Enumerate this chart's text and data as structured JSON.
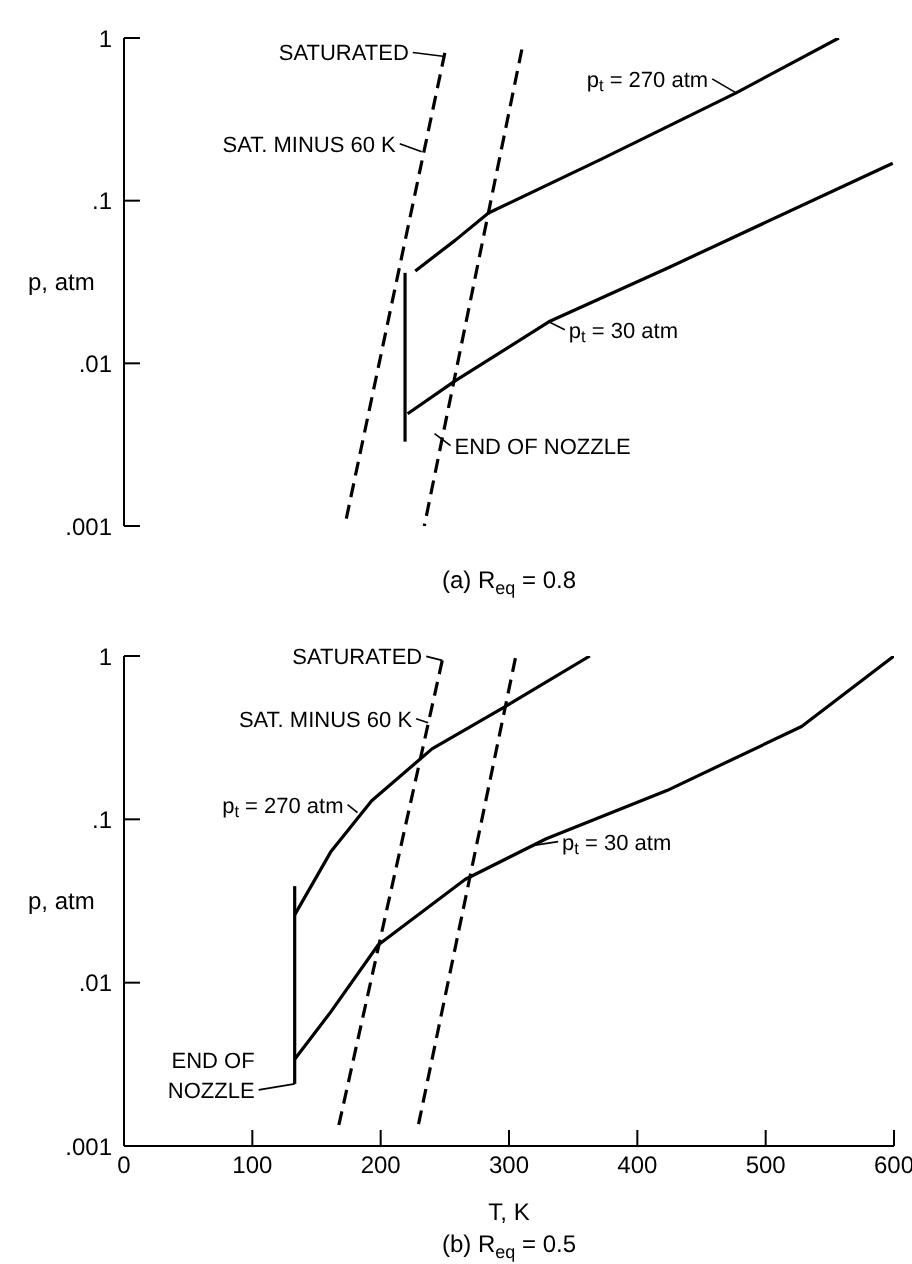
{
  "chart_data": [
    {
      "type": "line",
      "title": "(a) R$_{eq}$ = 0.8",
      "ylabel": "p, atm",
      "log": "y",
      "xlim": [
        0,
        600
      ],
      "xticks": [
        0,
        100,
        200,
        300,
        400,
        500,
        600
      ],
      "ylim": [
        0.001,
        1
      ],
      "yticks": [
        {
          "value": 0.001,
          "label": ".001"
        },
        {
          "value": 0.01,
          "label": ".01"
        },
        {
          "value": 0.1,
          "label": ".1"
        },
        1
      ],
      "tick_labels": "y",
      "marker": "none",
      "series": [
        {
          "color": "#000000",
          "line_style": "solid",
          "x": [
            227,
            258,
            284,
            372,
            477,
            557
          ],
          "values": [
            0.037,
            0.057,
            0.084,
            0.18,
            0.46,
            1
          ]
        },
        {
          "color": "#000000",
          "line_style": "solid",
          "x": [
            221,
            258,
            331,
            425,
            599
          ],
          "values": [
            0.0049,
            0.0078,
            0.018,
            0.039,
            0.17
          ]
        },
        {
          "color": "#000000",
          "line_style": "dashed",
          "x": [
            310,
            234
          ],
          "values": [
            0.85,
            0.001
          ]
        },
        {
          "color": "#000000",
          "line_style": "dashed",
          "x": [
            250,
            172
          ],
          "values": [
            0.81,
            0.001
          ]
        },
        {
          "color": "#000000",
          "line_style": "solid",
          "x": [
            219,
            219
          ],
          "values": [
            0.036,
            0.0033
          ]
        }
      ],
      "annotations": [
        {
          "text": "SATURATED",
          "x": 250,
          "y": 0.77
        },
        {
          "text": "SAT. MINUS 60 K",
          "x": 232,
          "y": 0.2
        },
        {
          "text": "p$_{t}$ = 270 atm",
          "x": 477,
          "y": 0.46
        },
        {
          "text": "p$_{t}$ = 30 atm",
          "x": 331,
          "y": 0.018
        },
        {
          "text": "END OF NOZZLE",
          "x": 242,
          "y": 0.0037
        }
      ]
    },
    {
      "type": "line",
      "title": "(b) R$_{eq}$ = 0.5",
      "xlabel": "T, K",
      "ylabel": "p, atm",
      "log": "y",
      "xlim": [
        0,
        600
      ],
      "xticks": [
        0,
        100,
        200,
        300,
        400,
        500,
        600
      ],
      "ylim": [
        0.001,
        1
      ],
      "yticks": [
        {
          "value": 0.001,
          "label": ".001"
        },
        {
          "value": 0.01,
          "label": ".01"
        },
        {
          "value": 0.1,
          "label": ".1"
        },
        1
      ],
      "marker": "none",
      "series": [
        {
          "color": "#000000",
          "line_style": "solid",
          "x": [
            133,
            161,
            193,
            240,
            297,
            363
          ],
          "values": [
            0.026,
            0.063,
            0.13,
            0.27,
            0.49,
            1
          ]
        },
        {
          "color": "#000000",
          "line_style": "solid",
          "x": [
            133,
            161,
            198,
            266,
            329,
            423,
            528,
            600
          ],
          "values": [
            0.0034,
            0.0066,
            0.017,
            0.043,
            0.076,
            0.15,
            0.37,
            1
          ]
        },
        {
          "color": "#000000",
          "line_style": "dashed",
          "x": [
            305,
            229
          ],
          "values": [
            0.97,
            0.0013
          ]
        },
        {
          "color": "#000000",
          "line_style": "dashed",
          "x": [
            248,
            167
          ],
          "values": [
            0.94,
            0.0013
          ]
        },
        {
          "color": "#000000",
          "line_style": "solid",
          "x": [
            133,
            133
          ],
          "values": [
            0.039,
            0.0024
          ]
        }
      ],
      "annotations": [
        {
          "text": "SATURATED",
          "x": 248,
          "y": 0.94
        },
        {
          "text": "SAT. MINUS 60 K",
          "x": 237,
          "y": 0.39
        },
        {
          "text": "p$_{t}$ = 270 atm",
          "x": 182,
          "y": 0.11
        },
        {
          "text": "p$_{t}$ = 30 atm",
          "x": 318,
          "y": 0.069
        },
        {
          "text": "END OF NOZZLE",
          "x": 133,
          "y": 0.0024
        }
      ]
    }
  ]
}
